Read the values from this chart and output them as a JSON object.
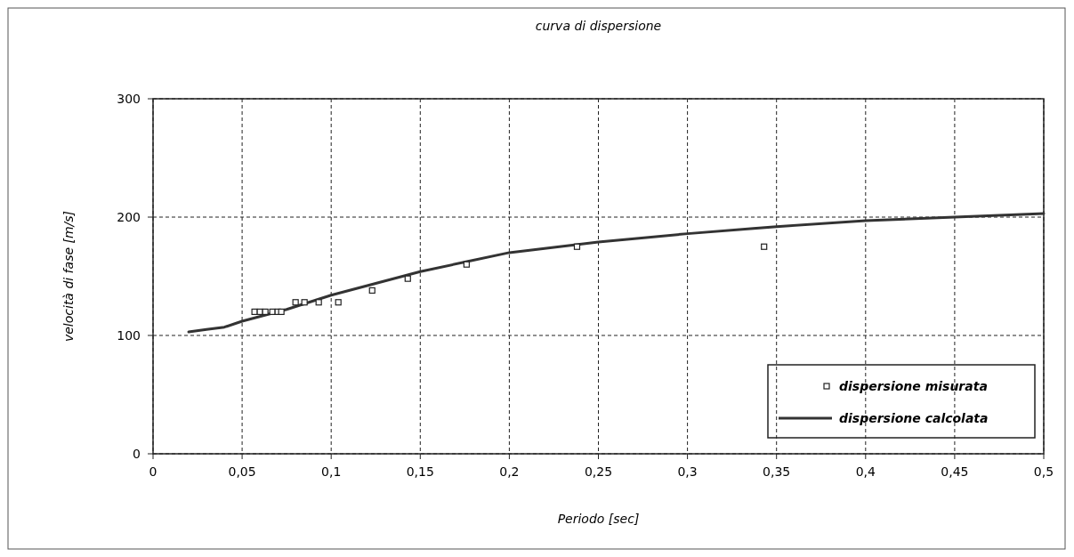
{
  "chart_data": {
    "type": "scatter",
    "title": "curva di dispersione",
    "xlabel": "Periodo [sec]",
    "ylabel": "velocità di fase [m/s]",
    "xlim": [
      0,
      0.5
    ],
    "xticks": [
      0,
      {
        "value": 0.05,
        "label": "0,05"
      },
      {
        "value": 0.1,
        "label": "0,1"
      },
      {
        "value": 0.15,
        "label": "0,15"
      },
      {
        "value": 0.2,
        "label": "0,2"
      },
      {
        "value": 0.25,
        "label": "0,25"
      },
      {
        "value": 0.3,
        "label": "0,3"
      },
      {
        "value": 0.35,
        "label": "0,35"
      },
      {
        "value": 0.4,
        "label": "0,4"
      },
      {
        "value": 0.45,
        "label": "0,45"
      },
      {
        "value": 0.5,
        "label": "0,5"
      }
    ],
    "ylim": [
      0,
      300
    ],
    "yticks": [
      0,
      100,
      200,
      300
    ],
    "grid": true,
    "legend": "bottom right",
    "series": [
      {
        "name": "dispersione misurata",
        "marker": "square",
        "color": "#222222",
        "x": [
          0.057,
          0.06,
          0.063,
          0.067,
          0.07,
          0.072,
          0.08,
          0.085,
          0.093,
          0.104,
          0.123,
          0.143,
          0.176,
          0.238,
          0.343
        ],
        "values": [
          120,
          120,
          120,
          120,
          120,
          120,
          128,
          128,
          128,
          128,
          138,
          148,
          160,
          175,
          175
        ]
      },
      {
        "name": "dispersione calcolata",
        "type": "line",
        "marker": "none",
        "color": "#333333",
        "x": [
          0.02,
          0.03,
          0.04,
          0.05,
          0.075,
          0.1,
          0.125,
          0.15,
          0.175,
          0.2,
          0.25,
          0.3,
          0.35,
          0.4,
          0.45,
          0.5
        ],
        "values": [
          103,
          105,
          107,
          112,
          122,
          134,
          144,
          154,
          162,
          170,
          179,
          186,
          192,
          197,
          200,
          203
        ]
      }
    ]
  }
}
